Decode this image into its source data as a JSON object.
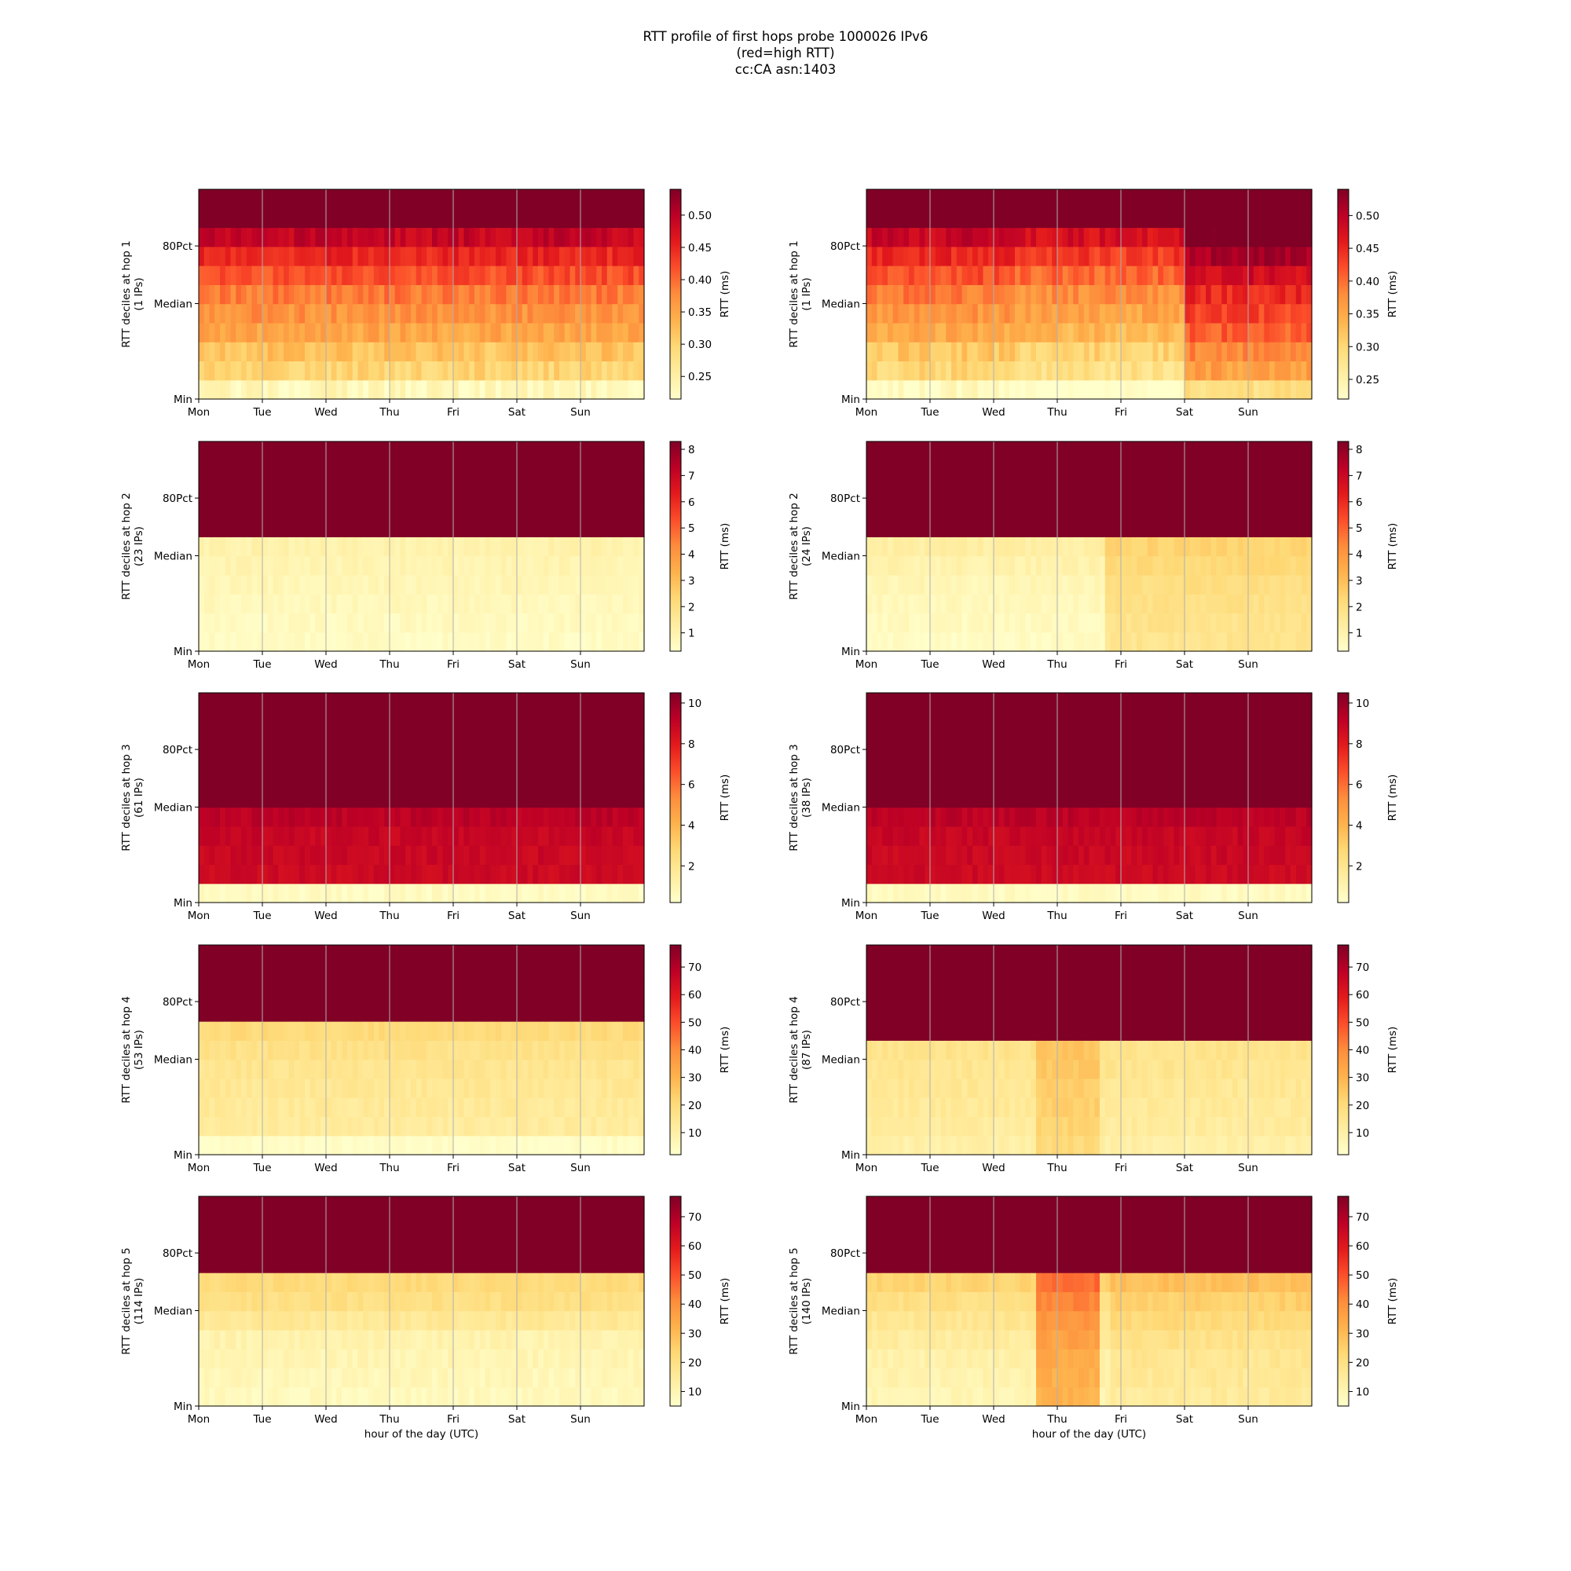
{
  "title_lines": [
    "RTT profile of first hops probe 1000026 IPv6",
    "(red=high RTT)",
    "cc:CA asn:1403"
  ],
  "common": {
    "x_ticks": [
      "Mon",
      "Tue",
      "Wed",
      "Thu",
      "Fri",
      "Sat",
      "Sun"
    ],
    "y_ticks": [
      "80Pct",
      "Median",
      "Min"
    ],
    "xlabel": "hour of the day (UTC)",
    "colorbar_label": "RTT (ms)",
    "colormap": [
      "#ffffcc",
      "#ffeda0",
      "#fed976",
      "#feb24c",
      "#fd8d3c",
      "#fc4e2a",
      "#e31a1c",
      "#bd0026",
      "#800026"
    ]
  },
  "chart_data": [
    {
      "type": "heatmap",
      "hop": 1,
      "column": "left",
      "ylabel_line1": "RTT deciles at hop 1",
      "ylabel_line2": "(1 IPs)",
      "vmin": 0.215,
      "vmax": 0.54,
      "cbar_ticks": [
        0.25,
        0.3,
        0.35,
        0.4,
        0.45,
        0.5
      ],
      "cbar_tick_labels": [
        "0.25",
        "0.30",
        "0.35",
        "0.40",
        "0.45",
        "0.50"
      ],
      "deciles": [
        0.23,
        0.3,
        0.32,
        0.35,
        0.37,
        0.39,
        0.42,
        0.45,
        0.49,
        0.54,
        0.54
      ],
      "noise": 0.02
    },
    {
      "type": "heatmap",
      "hop": 1,
      "column": "right",
      "ylabel_line1": "RTT deciles at hop 1",
      "ylabel_line2": "(1 IPs)",
      "vmin": 0.22,
      "vmax": 0.54,
      "cbar_ticks": [
        0.25,
        0.3,
        0.35,
        0.4,
        0.45,
        0.5
      ],
      "cbar_tick_labels": [
        "0.25",
        "0.30",
        "0.35",
        "0.40",
        "0.45",
        "0.50"
      ],
      "deciles": [
        0.23,
        0.3,
        0.32,
        0.35,
        0.37,
        0.39,
        0.42,
        0.45,
        0.49,
        0.54,
        0.54
      ],
      "noise": 0.02,
      "segments": [
        {
          "from_day": 0.0,
          "to_day": 2.3,
          "add": 0.0
        },
        {
          "from_day": 2.3,
          "to_day": 5.0,
          "add": -0.015
        },
        {
          "from_day": 5.0,
          "to_day": 7.0,
          "add": 0.06
        }
      ]
    },
    {
      "type": "heatmap",
      "hop": 2,
      "column": "left",
      "ylabel_line1": "RTT deciles at hop 2",
      "ylabel_line2": "(23 IPs)",
      "vmin": 0.3,
      "vmax": 8.3,
      "cbar_ticks": [
        1,
        2,
        3,
        4,
        5,
        6,
        7,
        8
      ],
      "cbar_tick_labels": [
        "1",
        "2",
        "3",
        "4",
        "5",
        "6",
        "7",
        "8"
      ],
      "deciles": [
        0.5,
        0.6,
        0.7,
        0.8,
        0.9,
        1.0,
        8.3,
        8.3,
        8.3,
        8.3,
        8.3
      ],
      "noise": 0.2
    },
    {
      "type": "heatmap",
      "hop": 2,
      "column": "right",
      "ylabel_line1": "RTT deciles at hop 2",
      "ylabel_line2": "(24 IPs)",
      "vmin": 0.3,
      "vmax": 8.3,
      "cbar_ticks": [
        1,
        2,
        3,
        4,
        5,
        6,
        7,
        8
      ],
      "cbar_tick_labels": [
        "1",
        "2",
        "3",
        "4",
        "5",
        "6",
        "7",
        "8"
      ],
      "deciles": [
        0.5,
        0.6,
        0.7,
        0.8,
        1.0,
        1.2,
        8.3,
        8.3,
        8.3,
        8.3,
        8.3
      ],
      "noise": 0.2,
      "segments": [
        {
          "from_day": 3.7,
          "to_day": 7.0,
          "add": 1.2
        }
      ]
    },
    {
      "type": "heatmap",
      "hop": 3,
      "column": "left",
      "ylabel_line1": "RTT deciles at hop 3",
      "ylabel_line2": "(61 IPs)",
      "vmin": 0.2,
      "vmax": 10.5,
      "cbar_ticks": [
        2,
        4,
        6,
        8,
        10
      ],
      "cbar_tick_labels": [
        "2",
        "4",
        "6",
        "8",
        "10"
      ],
      "deciles": [
        0.5,
        8.7,
        8.8,
        8.9,
        9.2,
        10.5,
        10.5,
        10.5,
        10.5,
        10.5,
        10.5
      ],
      "noise": 0.3
    },
    {
      "type": "heatmap",
      "hop": 3,
      "column": "right",
      "ylabel_line1": "RTT deciles at hop 3",
      "ylabel_line2": "(38 IPs)",
      "vmin": 0.2,
      "vmax": 10.5,
      "cbar_ticks": [
        2,
        4,
        6,
        8,
        10
      ],
      "cbar_tick_labels": [
        "2",
        "4",
        "6",
        "8",
        "10"
      ],
      "deciles": [
        0.5,
        8.7,
        8.8,
        8.9,
        9.2,
        10.5,
        10.5,
        10.5,
        10.5,
        10.5,
        10.5
      ],
      "noise": 0.3
    },
    {
      "type": "heatmap",
      "hop": 4,
      "column": "left",
      "ylabel_line1": "RTT deciles at hop 4",
      "ylabel_line2": "(53 IPs)",
      "vmin": 2,
      "vmax": 78,
      "cbar_ticks": [
        10,
        20,
        30,
        40,
        50,
        60,
        70
      ],
      "cbar_tick_labels": [
        "10",
        "20",
        "30",
        "40",
        "50",
        "60",
        "70"
      ],
      "deciles": [
        3,
        12,
        13,
        14,
        15,
        17,
        20,
        78,
        78,
        78,
        78
      ],
      "noise": 2.0
    },
    {
      "type": "heatmap",
      "hop": 4,
      "column": "right",
      "ylabel_line1": "RTT deciles at hop 4",
      "ylabel_line2": "(87 IPs)",
      "vmin": 2,
      "vmax": 78,
      "cbar_ticks": [
        10,
        20,
        30,
        40,
        50,
        60,
        70
      ],
      "cbar_tick_labels": [
        "10",
        "20",
        "30",
        "40",
        "50",
        "60",
        "70"
      ],
      "deciles": [
        10,
        12,
        13,
        14,
        15,
        16,
        78,
        78,
        78,
        78,
        78
      ],
      "noise": 2.0,
      "segments": [
        {
          "from_day": 2.6,
          "to_day": 3.6,
          "add": 10
        }
      ]
    },
    {
      "type": "heatmap",
      "hop": 5,
      "column": "left",
      "ylabel_line1": "RTT deciles at hop 5",
      "ylabel_line2": "(114 IPs)",
      "vmin": 5,
      "vmax": 77,
      "cbar_ticks": [
        10,
        20,
        30,
        40,
        50,
        60,
        70
      ],
      "cbar_tick_labels": [
        "10",
        "20",
        "30",
        "40",
        "50",
        "60",
        "70"
      ],
      "deciles": [
        8,
        9,
        10,
        11,
        16,
        20,
        22,
        77,
        77,
        77,
        77
      ],
      "noise": 2.0
    },
    {
      "type": "heatmap",
      "hop": 5,
      "column": "right",
      "ylabel_line1": "RTT deciles at hop 5",
      "ylabel_line2": "(140 IPs)",
      "vmin": 5,
      "vmax": 77,
      "cbar_ticks": [
        10,
        20,
        30,
        40,
        50,
        60,
        70
      ],
      "cbar_tick_labels": [
        "10",
        "20",
        "30",
        "40",
        "50",
        "60",
        "70"
      ],
      "deciles": [
        10,
        11,
        12,
        14,
        17,
        20,
        24,
        77,
        77,
        77,
        77
      ],
      "noise": 2.0,
      "segments": [
        {
          "from_day": 2.6,
          "to_day": 3.6,
          "add": 22
        },
        {
          "from_day": 3.8,
          "to_day": 7.0,
          "add": 5
        }
      ]
    }
  ]
}
